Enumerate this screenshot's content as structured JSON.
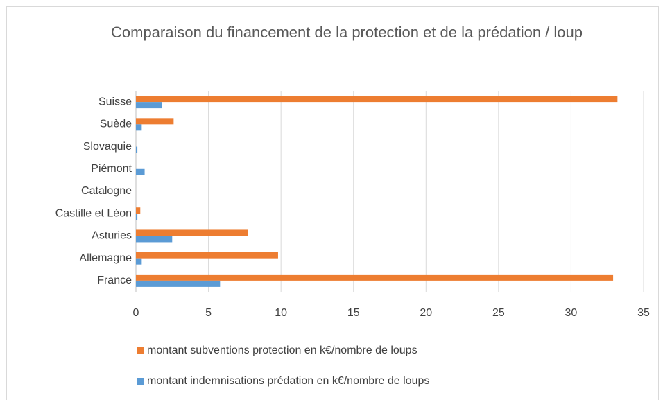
{
  "chart_data": {
    "type": "hbar",
    "title": "Comparaison du financement de la protection et de la prédation / loup",
    "categories": [
      "France",
      "Allemagne",
      "Asturies",
      "Castille et Léon",
      "Catalogne",
      "Piémont",
      "Slovaquie",
      "Suède",
      "Suisse"
    ],
    "series": [
      {
        "name": "montant subventions protection en k€/nombre de loups",
        "color": "#ed7d31",
        "values": [
          32.9,
          9.8,
          7.7,
          0.3,
          0,
          0,
          0,
          2.6,
          33.2
        ]
      },
      {
        "name": "montant indemnisations prédation en k€/nombre de loups",
        "color": "#5b9bd5",
        "values": [
          5.8,
          0.4,
          2.5,
          0.1,
          0,
          0.6,
          0.1,
          0.4,
          1.8
        ]
      }
    ],
    "xlim": [
      0,
      35
    ],
    "xticks": [
      0,
      5,
      10,
      15,
      20,
      25,
      30,
      35
    ],
    "grid": true
  }
}
